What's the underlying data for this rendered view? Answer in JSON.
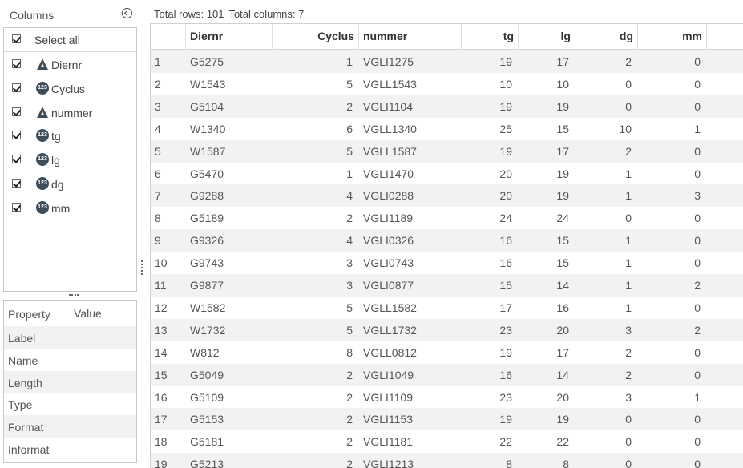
{
  "columns_panel": {
    "title": "Columns",
    "select_all_label": "Select all",
    "items": [
      {
        "label": "Diernr",
        "type": "char"
      },
      {
        "label": "Cyclus",
        "type": "num"
      },
      {
        "label": "nummer",
        "type": "char"
      },
      {
        "label": "tg",
        "type": "num"
      },
      {
        "label": "lg",
        "type": "num"
      },
      {
        "label": "dg",
        "type": "num"
      },
      {
        "label": "mm",
        "type": "num"
      }
    ],
    "num_icon_text": "123"
  },
  "properties": {
    "header_property": "Property",
    "header_value": "Value",
    "rows": [
      "Label",
      "Name",
      "Length",
      "Type",
      "Format",
      "Informat"
    ]
  },
  "summary": {
    "rows_text": "Total rows: 101",
    "cols_text": "Total columns: 7"
  },
  "table": {
    "headers": [
      "",
      "Diernr",
      "Cyclus",
      "nummer",
      "tg",
      "lg",
      "dg",
      "mm"
    ],
    "rows": [
      [
        "1",
        "G5275",
        "1",
        "VGLI1275",
        "19",
        "17",
        "2",
        "0"
      ],
      [
        "2",
        "W1543",
        "5",
        "VGLL1543",
        "10",
        "10",
        "0",
        "0"
      ],
      [
        "3",
        "G5104",
        "2",
        "VGLI1104",
        "19",
        "19",
        "0",
        "0"
      ],
      [
        "4",
        "W1340",
        "6",
        "VGLL1340",
        "25",
        "15",
        "10",
        "1"
      ],
      [
        "5",
        "W1587",
        "5",
        "VGLL1587",
        "19",
        "17",
        "2",
        "0"
      ],
      [
        "6",
        "G5470",
        "1",
        "VGLI1470",
        "20",
        "19",
        "1",
        "0"
      ],
      [
        "7",
        "G9288",
        "4",
        "VGLI0288",
        "20",
        "19",
        "1",
        "3"
      ],
      [
        "8",
        "G5189",
        "2",
        "VGLI1189",
        "24",
        "24",
        "0",
        "0"
      ],
      [
        "9",
        "G9326",
        "4",
        "VGLI0326",
        "16",
        "15",
        "1",
        "0"
      ],
      [
        "10",
        "G9743",
        "3",
        "VGLI0743",
        "16",
        "15",
        "1",
        "0"
      ],
      [
        "11",
        "G9877",
        "3",
        "VGLI0877",
        "15",
        "14",
        "1",
        "2"
      ],
      [
        "12",
        "W1582",
        "5",
        "VGLL1582",
        "17",
        "16",
        "1",
        "0"
      ],
      [
        "13",
        "W1732",
        "5",
        "VGLL1732",
        "23",
        "20",
        "3",
        "2"
      ],
      [
        "14",
        "W812",
        "8",
        "VGLL0812",
        "19",
        "17",
        "2",
        "0"
      ],
      [
        "15",
        "G5049",
        "2",
        "VGLI1049",
        "16",
        "14",
        "2",
        "0"
      ],
      [
        "16",
        "G5109",
        "2",
        "VGLI1109",
        "23",
        "20",
        "3",
        "1"
      ],
      [
        "17",
        "G5153",
        "2",
        "VGLI1153",
        "19",
        "19",
        "0",
        "0"
      ],
      [
        "18",
        "G5181",
        "2",
        "VGLI1181",
        "22",
        "22",
        "0",
        "0"
      ],
      [
        "19",
        "G5213",
        "2",
        "VGLI1213",
        "8",
        "8",
        "0",
        "0"
      ]
    ]
  },
  "colors": {
    "alt_row": "#f2f2f2",
    "icon_dark": "#3f4d5a",
    "border": "#d0d0d0"
  }
}
